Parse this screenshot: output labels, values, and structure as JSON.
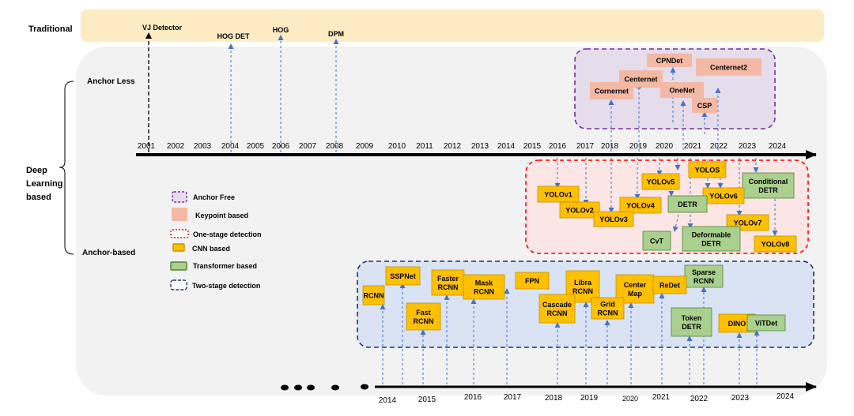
{
  "labels": {
    "traditional": "Traditional",
    "anchor_less": "Anchor Less",
    "anchor_based": "Anchor-based",
    "deep_learning": [
      "Deep",
      "Learning",
      "based"
    ]
  },
  "traditional_methods": [
    "VJ Detector",
    "HOG DET",
    "HOG",
    "DPM"
  ],
  "top_timeline_years": [
    "2001",
    "2002",
    "2003",
    "2004",
    "2005",
    "2006",
    "2007",
    "2008",
    "2009",
    "2010",
    "2011",
    "2012",
    "2013",
    "2014",
    "2015",
    "2016",
    "2017",
    "2018",
    "2019",
    "2020",
    "2021",
    "2022",
    "2023",
    "2024"
  ],
  "bottom_timeline_years": [
    "2014",
    "2015",
    "2016",
    "2017",
    "2018",
    "2019",
    "2020",
    "2021",
    "2022",
    "2023",
    "2024"
  ],
  "legend": [
    {
      "label": "Anchor Free",
      "swatch": "anchor-free"
    },
    {
      "label": "Keypoint based",
      "swatch": "keypoint"
    },
    {
      "label": "One-stage detection",
      "swatch": "one-stage"
    },
    {
      "label": "CNN based",
      "swatch": "cnn"
    },
    {
      "label": "Transformer based",
      "swatch": "transformer"
    },
    {
      "label": "Two-stage detection",
      "swatch": "two-stage"
    }
  ],
  "anchor_free_models": [
    {
      "lines": [
        "CPNDet"
      ]
    },
    {
      "lines": [
        "Centernet2"
      ]
    },
    {
      "lines": [
        "Centernet"
      ]
    },
    {
      "lines": [
        "OneNet"
      ]
    },
    {
      "lines": [
        "Cornernet"
      ]
    },
    {
      "lines": [
        "CSP"
      ]
    }
  ],
  "one_stage_models": [
    {
      "lines": [
        "YOLOS"
      ],
      "kind": "cnn"
    },
    {
      "lines": [
        "YOLOv5"
      ],
      "kind": "cnn"
    },
    {
      "lines": [
        "Conditional",
        "DETR"
      ],
      "kind": "transformer"
    },
    {
      "lines": [
        "YOLOv1"
      ],
      "kind": "cnn"
    },
    {
      "lines": [
        "YOLOv6"
      ],
      "kind": "cnn"
    },
    {
      "lines": [
        "DETR"
      ],
      "kind": "transformer"
    },
    {
      "lines": [
        "YOLOv4"
      ],
      "kind": "cnn"
    },
    {
      "lines": [
        "YOLOv2"
      ],
      "kind": "cnn"
    },
    {
      "lines": [
        "YOLOv3"
      ],
      "kind": "cnn"
    },
    {
      "lines": [
        "YOLOv7"
      ],
      "kind": "cnn"
    },
    {
      "lines": [
        "CvT"
      ],
      "kind": "transformer"
    },
    {
      "lines": [
        "Deformable",
        "DETR"
      ],
      "kind": "transformer"
    },
    {
      "lines": [
        "YOLOv8"
      ],
      "kind": "cnn"
    }
  ],
  "two_stage_models": [
    {
      "lines": [
        "SSPNet"
      ],
      "kind": "cnn"
    },
    {
      "lines": [
        "Faster",
        "RCNN"
      ],
      "kind": "cnn"
    },
    {
      "lines": [
        "Mask",
        "RCNN"
      ],
      "kind": "cnn"
    },
    {
      "lines": [
        "FPN"
      ],
      "kind": "cnn"
    },
    {
      "lines": [
        "Libra",
        "RCNN"
      ],
      "kind": "cnn"
    },
    {
      "lines": [
        "Center",
        "Map"
      ],
      "kind": "cnn"
    },
    {
      "lines": [
        "Sparse",
        "RCNN"
      ],
      "kind": "transformer"
    },
    {
      "lines": [
        "RCNN"
      ],
      "kind": "cnn"
    },
    {
      "lines": [
        "ReDet"
      ],
      "kind": "cnn"
    },
    {
      "lines": [
        "Cascade",
        "RCNN"
      ],
      "kind": "cnn"
    },
    {
      "lines": [
        "Grid",
        "RCNN"
      ],
      "kind": "cnn"
    },
    {
      "lines": [
        "DINO"
      ],
      "kind": "cnn"
    },
    {
      "lines": [
        "Fast",
        "RCNN"
      ],
      "kind": "cnn"
    },
    {
      "lines": [
        "Token",
        "DETR"
      ],
      "kind": "transformer"
    },
    {
      "lines": [
        "ViTDet"
      ],
      "kind": "transformer"
    }
  ],
  "colors": {
    "traditional_band": "#fdebc3",
    "deep_learning_bg": "#f2f2f2",
    "anchor_free_fill": "#e5dcec",
    "anchor_free_border": "#7030a0",
    "keypoint_fill": "#f4b9a4",
    "one_stage_fill": "#fbe5e5",
    "one_stage_border": "#ff0000",
    "cnn_fill": "#ffc000",
    "cnn_border": "#bf9000",
    "transformer_fill": "#a9d08e",
    "transformer_border": "#548235",
    "two_stage_fill": "#dae3f3",
    "two_stage_border": "#203864",
    "arrow_blue": "#4472c4",
    "timeline": "#000000"
  }
}
